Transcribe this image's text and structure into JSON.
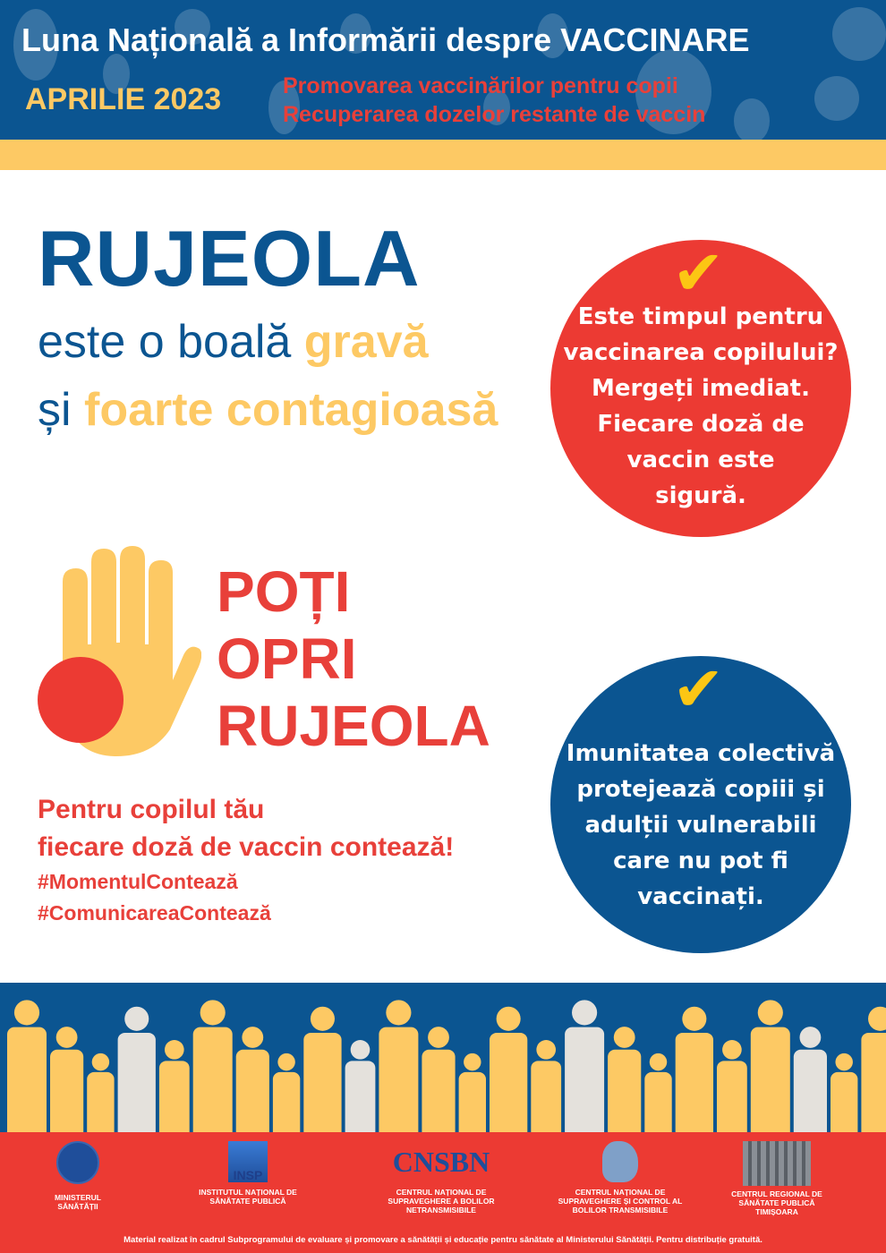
{
  "header": {
    "title": "Luna Națională a Informării despre VACCINARE",
    "month": "APRILIE 2023",
    "subtitle_1": "Promovarea vaccinărilor pentru copii",
    "subtitle_2": "Recuperarea dozelor restante de vaccin"
  },
  "main": {
    "title": "RUJEOLA",
    "line1_a": "este o boală ",
    "line1_b": "gravă",
    "line2_a": "și ",
    "line2_b": "foarte contagioasă"
  },
  "circle_red": {
    "icon": "checkmark-icon",
    "lines": [
      "Este timpul pentru",
      "vaccinarea copilului?",
      "Mergeți imediat.",
      "Fiecare doză de",
      "vaccin este",
      "sigură."
    ]
  },
  "circle_blue": {
    "icon": "checkmark-icon",
    "lines": [
      "Imunitatea colectivă",
      "protejează copiii și",
      "adulții vulnerabili",
      "care nu pot fi",
      "vaccinați."
    ]
  },
  "stop": {
    "icon": "stop-hand-icon",
    "lines": [
      "POȚI",
      "OPRI",
      "RUJEOLA"
    ]
  },
  "message": {
    "line1": "Pentru copilul tău",
    "line2": "fiecare doză de vaccin contează!",
    "hashtag1": "#MomentulContează",
    "hashtag2": "#ComunicareaContează"
  },
  "colors": {
    "blue": "#0b5591",
    "yellow": "#fdc964",
    "red": "#ec3a33"
  },
  "footer": {
    "logos": [
      {
        "name": "MINISTERUL SĂNĂTĂȚII",
        "l1": "MINISTERUL",
        "l2": "SĂNĂTĂȚII",
        "l3": ""
      },
      {
        "name": "INSP",
        "l1": "INSTITUTUL NAȚIONAL DE",
        "l2": "SĂNĂTATE PUBLICĂ",
        "l3": ""
      },
      {
        "name": "CNSBN",
        "l1": "CENTRUL NAȚIONAL DE",
        "l2": "SUPRAVEGHERE A BOLILOR",
        "l3": "NETRANSMISIBILE"
      },
      {
        "name": "CNSCBT",
        "l1": "CENTRUL NAȚIONAL DE",
        "l2": "SUPRAVEGHERE ȘI CONTROL AL",
        "l3": "BOLILOR TRANSMISIBILE"
      },
      {
        "name": "CRSP Timișoara",
        "l1": "CENTRUL REGIONAL DE",
        "l2": "SĂNĂTATE PUBLICĂ",
        "l3": "TIMIȘOARA"
      }
    ],
    "note": "Material realizat în cadrul Subprogramului de evaluare și promovare a sănătății și educație pentru sănătate al Ministerului Sănătății. Pentru distribuție gratuită."
  }
}
